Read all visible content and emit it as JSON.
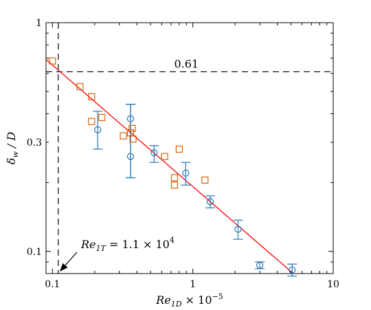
{
  "chart_data": {
    "type": "scatter",
    "xscale": "log",
    "yscale": "log",
    "xlim": [
      0.09,
      10
    ],
    "ylim": [
      0.08,
      1
    ],
    "xticks": [
      {
        "value": 0.1,
        "label": "0.1"
      },
      {
        "value": 1,
        "label": "1"
      },
      {
        "value": 10,
        "label": "10"
      }
    ],
    "yticks": [
      {
        "value": 0.1,
        "label": "0.1"
      },
      {
        "value": 0.3,
        "label": "0.3"
      },
      {
        "value": 1,
        "label": "1"
      }
    ],
    "xlabel": {
      "main": "Re",
      "sub": "1D",
      "rest": " × 10",
      "sup": "−5"
    },
    "ylabel": {
      "main": "δ",
      "sub": "w",
      "rest": " / D"
    },
    "grid": false,
    "colors": {
      "circles": "#1f77b4",
      "squares": "#d95f02",
      "fit": "#ff0000",
      "ref": "#000000"
    },
    "series": [
      {
        "marker": "circle",
        "points": [
          {
            "x": 0.21,
            "y": 0.34,
            "ylo": 0.28,
            "yhi": 0.41
          },
          {
            "x": 0.36,
            "y": 0.38,
            "ylo": 0.21,
            "yhi": 0.44
          },
          {
            "x": 0.36,
            "y": 0.26,
            "ylo": 0.21,
            "yhi": 0.44
          },
          {
            "x": 0.53,
            "y": 0.27,
            "ylo": 0.245,
            "yhi": 0.29
          },
          {
            "x": 0.89,
            "y": 0.22,
            "ylo": 0.195,
            "yhi": 0.245
          },
          {
            "x": 1.33,
            "y": 0.165,
            "ylo": 0.155,
            "yhi": 0.175
          },
          {
            "x": 2.1,
            "y": 0.125,
            "ylo": 0.113,
            "yhi": 0.137
          },
          {
            "x": 3.0,
            "y": 0.087,
            "ylo": 0.084,
            "yhi": 0.09
          },
          {
            "x": 5.1,
            "y": 0.083,
            "ylo": 0.078,
            "yhi": 0.088
          }
        ]
      },
      {
        "marker": "square",
        "points": [
          {
            "x": 0.1,
            "y": 0.68
          },
          {
            "x": 0.157,
            "y": 0.525
          },
          {
            "x": 0.19,
            "y": 0.475
          },
          {
            "x": 0.19,
            "y": 0.37
          },
          {
            "x": 0.225,
            "y": 0.385
          },
          {
            "x": 0.32,
            "y": 0.32
          },
          {
            "x": 0.36,
            "y": 0.33
          },
          {
            "x": 0.37,
            "y": 0.345
          },
          {
            "x": 0.375,
            "y": 0.31
          },
          {
            "x": 0.63,
            "y": 0.26
          },
          {
            "x": 0.74,
            "y": 0.21
          },
          {
            "x": 0.74,
            "y": 0.195
          },
          {
            "x": 0.8,
            "y": 0.28
          },
          {
            "x": 1.22,
            "y": 0.205
          }
        ]
      }
    ],
    "fit_line": {
      "x": [
        0.09,
        5.2
      ],
      "y": [
        0.69,
        0.08
      ]
    },
    "reference_lines": [
      {
        "orientation": "horizontal",
        "value": 0.61,
        "label": "0.61"
      },
      {
        "orientation": "vertical",
        "value": 0.11
      }
    ],
    "annotations": [
      {
        "text_main": "Re",
        "text_sub": "1T",
        "text_rest": " = 1.1 × 10",
        "text_sup": "4",
        "points_to": {
          "x": 0.11,
          "y": 0.08
        }
      }
    ]
  }
}
